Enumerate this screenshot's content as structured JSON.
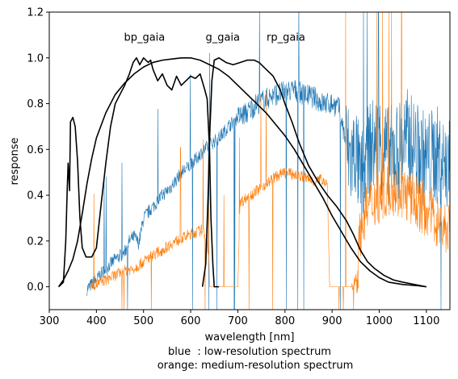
{
  "chart_data": {
    "type": "line",
    "xlabel": "wavelength [nm]",
    "ylabel": "response",
    "caption_lines": [
      "blue  : low-resolution spectrum",
      "orange: medium-resolution spectrum"
    ],
    "xlim": [
      300,
      1150
    ],
    "ylim": [
      -0.1,
      1.2
    ],
    "xticks": [
      300,
      400,
      500,
      600,
      700,
      800,
      900,
      1000,
      1100
    ],
    "yticks": [
      0.0,
      0.2,
      0.4,
      0.6,
      0.8,
      1.0,
      1.2
    ],
    "ytick_labels": [
      "0.0",
      "0.2",
      "0.4",
      "0.6",
      "0.8",
      "1.0",
      "1.2"
    ],
    "grid": false,
    "annotations": [
      {
        "text": "bp_gaia",
        "x": 502,
        "y": 1.09
      },
      {
        "text": "g_gaia",
        "x": 668,
        "y": 1.09
      },
      {
        "text": "rp_gaia",
        "x": 802,
        "y": 1.09
      }
    ],
    "series": [
      {
        "key": "bp_gaia",
        "color": "#000000",
        "points": [
          [
            320,
            0.0
          ],
          [
            330,
            0.02
          ],
          [
            335,
            0.2
          ],
          [
            338,
            0.42
          ],
          [
            340,
            0.54
          ],
          [
            343,
            0.42
          ],
          [
            345,
            0.72
          ],
          [
            350,
            0.74
          ],
          [
            355,
            0.7
          ],
          [
            360,
            0.55
          ],
          [
            365,
            0.3
          ],
          [
            370,
            0.17
          ],
          [
            378,
            0.13
          ],
          [
            390,
            0.13
          ],
          [
            400,
            0.17
          ],
          [
            410,
            0.36
          ],
          [
            420,
            0.54
          ],
          [
            430,
            0.7
          ],
          [
            440,
            0.8
          ],
          [
            450,
            0.84
          ],
          [
            460,
            0.88
          ],
          [
            470,
            0.93
          ],
          [
            478,
            0.98
          ],
          [
            485,
            1.0
          ],
          [
            492,
            0.97
          ],
          [
            500,
            1.0
          ],
          [
            510,
            0.98
          ],
          [
            515,
            0.99
          ],
          [
            520,
            0.95
          ],
          [
            530,
            0.9
          ],
          [
            540,
            0.93
          ],
          [
            550,
            0.88
          ],
          [
            560,
            0.86
          ],
          [
            570,
            0.92
          ],
          [
            580,
            0.88
          ],
          [
            590,
            0.9
          ],
          [
            600,
            0.92
          ],
          [
            610,
            0.91
          ],
          [
            620,
            0.93
          ],
          [
            630,
            0.86
          ],
          [
            635,
            0.82
          ],
          [
            640,
            0.6
          ],
          [
            643,
            0.3
          ],
          [
            647,
            0.1
          ],
          [
            650,
            0.0
          ],
          [
            660,
            0.0
          ]
        ]
      },
      {
        "key": "g_gaia",
        "color": "#000000",
        "points": [
          [
            320,
            0.0
          ],
          [
            330,
            0.03
          ],
          [
            340,
            0.07
          ],
          [
            350,
            0.12
          ],
          [
            360,
            0.2
          ],
          [
            370,
            0.32
          ],
          [
            380,
            0.45
          ],
          [
            390,
            0.56
          ],
          [
            400,
            0.65
          ],
          [
            420,
            0.76
          ],
          [
            440,
            0.84
          ],
          [
            460,
            0.89
          ],
          [
            480,
            0.93
          ],
          [
            500,
            0.96
          ],
          [
            520,
            0.98
          ],
          [
            540,
            0.99
          ],
          [
            560,
            0.995
          ],
          [
            580,
            1.0
          ],
          [
            600,
            1.0
          ],
          [
            620,
            0.99
          ],
          [
            640,
            0.97
          ],
          [
            660,
            0.95
          ],
          [
            680,
            0.92
          ],
          [
            700,
            0.88
          ],
          [
            720,
            0.84
          ],
          [
            740,
            0.8
          ],
          [
            760,
            0.76
          ],
          [
            780,
            0.71
          ],
          [
            800,
            0.66
          ],
          [
            820,
            0.6
          ],
          [
            840,
            0.53
          ],
          [
            860,
            0.46
          ],
          [
            880,
            0.39
          ],
          [
            900,
            0.31
          ],
          [
            920,
            0.24
          ],
          [
            940,
            0.17
          ],
          [
            960,
            0.11
          ],
          [
            980,
            0.07
          ],
          [
            1000,
            0.04
          ],
          [
            1020,
            0.02
          ],
          [
            1050,
            0.01
          ],
          [
            1080,
            0.005
          ],
          [
            1100,
            0.0
          ]
        ]
      },
      {
        "key": "rp_gaia",
        "color": "#000000",
        "points": [
          [
            625,
            0.0
          ],
          [
            632,
            0.1
          ],
          [
            637,
            0.4
          ],
          [
            641,
            0.7
          ],
          [
            645,
            0.9
          ],
          [
            650,
            0.99
          ],
          [
            660,
            1.0
          ],
          [
            675,
            0.98
          ],
          [
            690,
            0.97
          ],
          [
            705,
            0.98
          ],
          [
            720,
            0.99
          ],
          [
            735,
            0.99
          ],
          [
            745,
            0.98
          ],
          [
            760,
            0.95
          ],
          [
            775,
            0.92
          ],
          [
            790,
            0.86
          ],
          [
            800,
            0.8
          ],
          [
            815,
            0.72
          ],
          [
            830,
            0.63
          ],
          [
            850,
            0.53
          ],
          [
            870,
            0.46
          ],
          [
            890,
            0.4
          ],
          [
            910,
            0.35
          ],
          [
            930,
            0.29
          ],
          [
            945,
            0.23
          ],
          [
            960,
            0.16
          ],
          [
            975,
            0.11
          ],
          [
            990,
            0.08
          ],
          [
            1010,
            0.05
          ],
          [
            1030,
            0.03
          ],
          [
            1050,
            0.02
          ],
          [
            1075,
            0.01
          ],
          [
            1100,
            0.0
          ]
        ]
      },
      {
        "key": "low-resolution spectrum",
        "color": "#1f77b4",
        "points": [
          [
            380,
            -0.01
          ],
          [
            400,
            0.03
          ],
          [
            420,
            0.08
          ],
          [
            440,
            0.12
          ],
          [
            460,
            0.15
          ],
          [
            470,
            0.2
          ],
          [
            480,
            0.22
          ],
          [
            490,
            0.19
          ],
          [
            500,
            0.3
          ],
          [
            520,
            0.35
          ],
          [
            540,
            0.4
          ],
          [
            560,
            0.44
          ],
          [
            580,
            0.5
          ],
          [
            600,
            0.53
          ],
          [
            620,
            0.58
          ],
          [
            640,
            0.62
          ],
          [
            660,
            0.65
          ],
          [
            680,
            0.7
          ],
          [
            700,
            0.74
          ],
          [
            720,
            0.76
          ],
          [
            740,
            0.8
          ],
          [
            760,
            0.82
          ],
          [
            780,
            0.84
          ],
          [
            800,
            0.85
          ],
          [
            820,
            0.86
          ],
          [
            840,
            0.84
          ],
          [
            860,
            0.83
          ],
          [
            880,
            0.8
          ],
          [
            900,
            0.8
          ],
          [
            915,
            0.78
          ],
          [
            930,
            0.62
          ],
          [
            940,
            0.55
          ],
          [
            950,
            0.6
          ],
          [
            960,
            0.45
          ],
          [
            980,
            0.6
          ],
          [
            1000,
            0.63
          ],
          [
            1020,
            0.57
          ],
          [
            1040,
            0.6
          ],
          [
            1060,
            0.65
          ],
          [
            1080,
            0.59
          ],
          [
            1100,
            0.55
          ],
          [
            1120,
            0.58
          ],
          [
            1150,
            0.52
          ]
        ]
      },
      {
        "key": "medium-resolution spectrum",
        "color": "#ff7f0e",
        "points": [
          [
            380,
            -0.005
          ],
          [
            400,
            0.01
          ],
          [
            420,
            0.03
          ],
          [
            440,
            0.05
          ],
          [
            460,
            0.07
          ],
          [
            480,
            0.08
          ],
          [
            500,
            0.11
          ],
          [
            520,
            0.14
          ],
          [
            540,
            0.16
          ],
          [
            560,
            0.19
          ],
          [
            580,
            0.21
          ],
          [
            600,
            0.23
          ],
          [
            615,
            0.24
          ],
          [
            625,
            0.25
          ],
          [
            633,
            0.21
          ],
          [
            638,
            0.15
          ],
          [
            640,
            0.0
          ],
          [
            700,
            0.0
          ],
          [
            705,
            0.37
          ],
          [
            720,
            0.39
          ],
          [
            740,
            0.42
          ],
          [
            760,
            0.45
          ],
          [
            780,
            0.48
          ],
          [
            800,
            0.5
          ],
          [
            820,
            0.49
          ],
          [
            840,
            0.48
          ],
          [
            860,
            0.46
          ],
          [
            880,
            0.47
          ],
          [
            890,
            0.45
          ],
          [
            895,
            0.0
          ],
          [
            940,
            0.0
          ],
          [
            950,
            0.03
          ],
          [
            955,
            0.1
          ],
          [
            960,
            0.25
          ],
          [
            970,
            0.33
          ],
          [
            990,
            0.38
          ],
          [
            1010,
            0.41
          ],
          [
            1030,
            0.43
          ],
          [
            1050,
            0.41
          ],
          [
            1070,
            0.38
          ],
          [
            1090,
            0.35
          ],
          [
            1110,
            0.32
          ],
          [
            1130,
            0.27
          ],
          [
            1150,
            0.25
          ]
        ]
      }
    ]
  }
}
